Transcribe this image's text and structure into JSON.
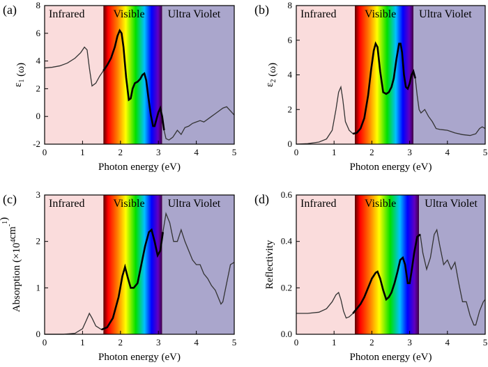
{
  "chart_data": [
    {
      "type": "line",
      "panel_label": "(a)",
      "xlabel": "Photon energy (eV)",
      "ylabel": "ε₁ (ω)",
      "xlim": [
        0,
        5
      ],
      "ylim": [
        -2,
        8
      ],
      "xticks": [
        0,
        1,
        2,
        3,
        4,
        5
      ],
      "yticks": [
        -2,
        0,
        2,
        4,
        6,
        8
      ],
      "regions": [
        {
          "label": "Infrared",
          "from": 0,
          "to": 1.55,
          "color": "#fadcdc"
        },
        {
          "label": "Visible",
          "from": 1.55,
          "to": 3.1,
          "color": "spectrum"
        },
        {
          "label": "Ultra Violet",
          "from": 3.1,
          "to": 5,
          "color": "#aaa6cc"
        }
      ],
      "series": [
        {
          "x": [
            0,
            0.2,
            0.4,
            0.6,
            0.8,
            0.95,
            1.05,
            1.12,
            1.18,
            1.25,
            1.35,
            1.45,
            1.55,
            1.65,
            1.75,
            1.85,
            1.92,
            1.98,
            2.03,
            2.08,
            2.15,
            2.22,
            2.27,
            2.32,
            2.38,
            2.45,
            2.52,
            2.58,
            2.63,
            2.68,
            2.73,
            2.8,
            2.86,
            2.9,
            2.95,
            3.0,
            3.05,
            3.1,
            3.15,
            3.2,
            3.28,
            3.38,
            3.5,
            3.6,
            3.7,
            3.8,
            3.9,
            4.0,
            4.1,
            4.2,
            4.3,
            4.4,
            4.5,
            4.6,
            4.7,
            4.8,
            4.9,
            5.0
          ],
          "y": [
            3.5,
            3.55,
            3.65,
            3.85,
            4.2,
            4.6,
            5.0,
            4.8,
            3.5,
            2.2,
            2.4,
            2.9,
            3.3,
            3.7,
            4.2,
            5.0,
            5.8,
            6.2,
            6.0,
            5.0,
            2.8,
            1.2,
            1.3,
            2.0,
            2.4,
            2.5,
            2.7,
            3.0,
            3.1,
            2.6,
            1.5,
            0.1,
            -0.7,
            -0.7,
            -0.2,
            0.3,
            0.6,
            0.0,
            -1.0,
            -1.6,
            -1.7,
            -1.5,
            -1.0,
            -1.3,
            -0.8,
            -0.7,
            -0.5,
            -0.4,
            -0.3,
            -0.4,
            -0.2,
            0.0,
            0.2,
            0.4,
            0.6,
            0.7,
            0.4,
            0.1
          ]
        }
      ]
    },
    {
      "type": "line",
      "panel_label": "(b)",
      "xlabel": "Photon energy (eV)",
      "ylabel": "ε₂ (ω)",
      "xlim": [
        0,
        5
      ],
      "ylim": [
        0,
        8
      ],
      "xticks": [
        0,
        1,
        2,
        3,
        4,
        5
      ],
      "yticks": [
        0,
        2,
        4,
        6,
        8
      ],
      "regions": [
        {
          "label": "Infrared",
          "from": 0,
          "to": 1.55,
          "color": "#fadcdc"
        },
        {
          "label": "Visible",
          "from": 1.55,
          "to": 3.1,
          "color": "spectrum"
        },
        {
          "label": "Ultra Violet",
          "from": 3.1,
          "to": 5,
          "color": "#aaa6cc"
        }
      ],
      "series": [
        {
          "x": [
            0,
            0.3,
            0.6,
            0.8,
            0.95,
            1.05,
            1.12,
            1.18,
            1.23,
            1.3,
            1.4,
            1.5,
            1.6,
            1.7,
            1.8,
            1.9,
            1.98,
            2.05,
            2.1,
            2.15,
            2.22,
            2.3,
            2.38,
            2.45,
            2.52,
            2.58,
            2.65,
            2.72,
            2.76,
            2.8,
            2.85,
            2.9,
            2.95,
            3.0,
            3.05,
            3.1,
            3.15,
            3.2,
            3.25,
            3.3,
            3.4,
            3.5,
            3.6,
            3.7,
            3.8,
            4.0,
            4.2,
            4.4,
            4.6,
            4.75,
            4.85,
            4.92,
            5.0
          ],
          "y": [
            0,
            0.03,
            0.12,
            0.3,
            0.8,
            2.0,
            3.0,
            3.3,
            2.6,
            1.3,
            0.8,
            0.6,
            0.65,
            0.9,
            1.5,
            2.8,
            4.3,
            5.4,
            5.8,
            5.6,
            4.2,
            3.0,
            2.9,
            3.0,
            3.3,
            3.8,
            4.9,
            5.8,
            5.8,
            5.3,
            4.0,
            3.3,
            3.2,
            3.5,
            4.0,
            4.2,
            3.8,
            2.8,
            2.0,
            1.8,
            2.0,
            1.6,
            1.3,
            0.9,
            0.85,
            0.8,
            0.65,
            0.55,
            0.5,
            0.6,
            0.9,
            1.0,
            0.9
          ]
        }
      ]
    },
    {
      "type": "line",
      "panel_label": "(c)",
      "xlabel": "Photon energy (eV)",
      "ylabel": "Absorption (×10⁴cm⁻¹)",
      "xlim": [
        0,
        5
      ],
      "ylim": [
        0,
        3
      ],
      "xticks": [
        0,
        1,
        2,
        3,
        4,
        5
      ],
      "yticks": [
        0,
        1,
        2,
        3
      ],
      "regions": [
        {
          "label": "Infrared",
          "from": 0,
          "to": 1.55,
          "color": "#fadcdc"
        },
        {
          "label": "Visible",
          "from": 1.55,
          "to": 3.1,
          "color": "spectrum"
        },
        {
          "label": "Ultra Violet",
          "from": 3.1,
          "to": 5,
          "color": "#aaa6cc"
        }
      ],
      "series": [
        {
          "x": [
            0,
            0.5,
            0.8,
            1.0,
            1.1,
            1.18,
            1.25,
            1.35,
            1.5,
            1.65,
            1.8,
            1.95,
            2.05,
            2.12,
            2.2,
            2.27,
            2.35,
            2.45,
            2.55,
            2.65,
            2.75,
            2.82,
            2.9,
            2.98,
            3.05,
            3.12,
            3.2,
            3.3,
            3.4,
            3.5,
            3.6,
            3.7,
            3.8,
            3.9,
            4.0,
            4.1,
            4.2,
            4.3,
            4.4,
            4.5,
            4.6,
            4.65,
            4.7,
            4.8,
            4.9,
            5.0
          ],
          "y": [
            0,
            0.0,
            0.02,
            0.12,
            0.3,
            0.45,
            0.35,
            0.18,
            0.1,
            0.15,
            0.35,
            0.8,
            1.25,
            1.45,
            1.2,
            1.0,
            1.0,
            1.1,
            1.5,
            1.9,
            2.2,
            2.25,
            2.0,
            1.7,
            1.8,
            2.2,
            2.6,
            2.4,
            2.0,
            2.0,
            2.25,
            2.0,
            1.8,
            1.6,
            1.5,
            1.5,
            1.3,
            1.2,
            1.05,
            0.95,
            0.75,
            0.65,
            0.7,
            1.1,
            1.5,
            1.55
          ]
        }
      ]
    },
    {
      "type": "line",
      "panel_label": "(d)",
      "xlabel": "Photon energy (eV)",
      "ylabel": "Reflectivity",
      "xlim": [
        0,
        5
      ],
      "ylim": [
        0,
        0.6
      ],
      "xticks": [
        0,
        1,
        2,
        3,
        4,
        5
      ],
      "yticks": [
        0.0,
        0.2,
        0.4,
        0.6
      ],
      "regions": [
        {
          "label": "Infrared",
          "from": 0,
          "to": 1.55,
          "color": "#fadcdc"
        },
        {
          "label": "Visible",
          "from": 1.55,
          "to": 3.25,
          "color": "spectrum"
        },
        {
          "label": "Ultra Violet",
          "from": 3.25,
          "to": 5,
          "color": "#aaa6cc"
        }
      ],
      "series": [
        {
          "x": [
            0,
            0.3,
            0.6,
            0.8,
            0.95,
            1.05,
            1.12,
            1.18,
            1.25,
            1.32,
            1.4,
            1.5,
            1.6,
            1.7,
            1.8,
            1.9,
            2.0,
            2.1,
            2.15,
            2.22,
            2.3,
            2.38,
            2.45,
            2.52,
            2.6,
            2.68,
            2.75,
            2.82,
            2.88,
            2.95,
            3.0,
            3.05,
            3.12,
            3.2,
            3.28,
            3.35,
            3.45,
            3.55,
            3.65,
            3.72,
            3.8,
            3.9,
            4.0,
            4.1,
            4.2,
            4.3,
            4.4,
            4.5,
            4.6,
            4.7,
            4.75,
            4.85,
            4.95,
            5.0
          ],
          "y": [
            0.09,
            0.09,
            0.095,
            0.11,
            0.14,
            0.17,
            0.18,
            0.15,
            0.1,
            0.07,
            0.075,
            0.09,
            0.11,
            0.13,
            0.16,
            0.2,
            0.24,
            0.265,
            0.27,
            0.24,
            0.19,
            0.15,
            0.16,
            0.18,
            0.22,
            0.27,
            0.32,
            0.33,
            0.3,
            0.22,
            0.22,
            0.27,
            0.35,
            0.42,
            0.43,
            0.35,
            0.28,
            0.33,
            0.43,
            0.45,
            0.38,
            0.3,
            0.32,
            0.28,
            0.31,
            0.22,
            0.14,
            0.14,
            0.08,
            0.04,
            0.04,
            0.1,
            0.14,
            0.15
          ]
        }
      ]
    }
  ]
}
